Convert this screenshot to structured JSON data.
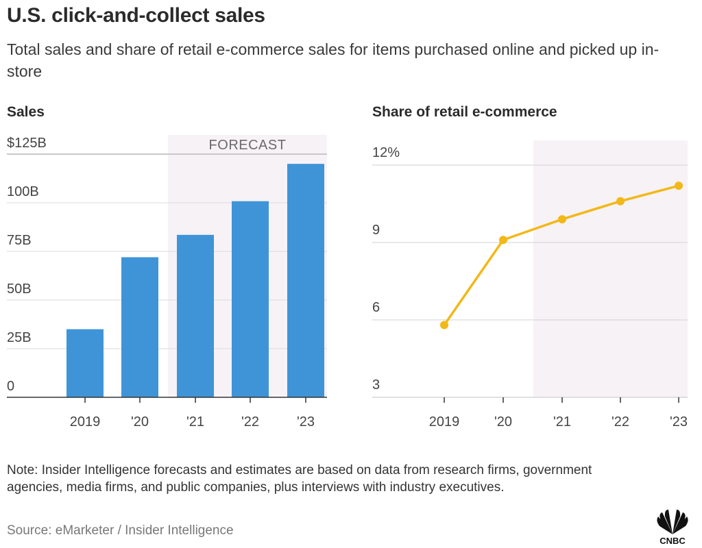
{
  "header": {
    "title": "U.S. click-and-collect sales",
    "subtitle": "Total sales and share of retail e-commerce sales for items purchased online and picked up in-store"
  },
  "chart_data": [
    {
      "type": "bar",
      "title": "Sales",
      "categories": [
        "2019",
        "'20",
        "'21",
        "'22",
        "'23"
      ],
      "values": [
        35,
        72,
        83.5,
        100.8,
        120
      ],
      "unit": "billion USD",
      "ylim": [
        0,
        125
      ],
      "yticks": [
        0,
        25,
        50,
        75,
        100,
        125
      ],
      "ytick_labels": [
        "0",
        "25B",
        "50B",
        "75B",
        "100B",
        "$125B"
      ],
      "xlabel": "",
      "ylabel": "",
      "grid": true,
      "forecast_label": "FORECAST",
      "forecast_from": "'21",
      "color": "#3f94d8"
    },
    {
      "type": "line",
      "title": "Share of retail e-commerce",
      "categories": [
        "2019",
        "'20",
        "'21",
        "'22",
        "'23"
      ],
      "values": [
        5.8,
        9.1,
        9.9,
        10.6,
        11.2
      ],
      "unit": "percent",
      "ylim": [
        3,
        12
      ],
      "yticks": [
        3,
        6,
        9,
        12
      ],
      "ytick_labels": [
        "3",
        "6",
        "9",
        "12%"
      ],
      "xlabel": "",
      "ylabel": "",
      "grid": true,
      "forecast_from": "'21",
      "color": "#f2b818"
    }
  ],
  "footer": {
    "note": "Note: Insider Intelligence forecasts and estimates are based on data from research firms, government agencies, media firms, and public companies, plus interviews with industry executives.",
    "source": "Source: eMarketer / Insider Intelligence",
    "logo_text": "CNBC"
  },
  "colors": {
    "forecast_shade": "#f7f2f6",
    "grid": "#d9d9d9",
    "axis": "#333333"
  }
}
